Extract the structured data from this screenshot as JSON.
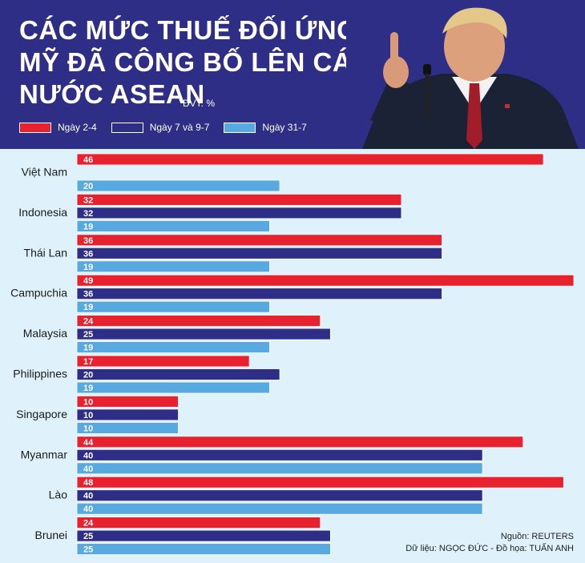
{
  "header": {
    "title_lines": [
      "CÁC MỨC THUẾ ĐỐI ỨNG",
      "MỸ ĐÃ CÔNG BỐ LÊN CÁC",
      "NƯỚC ASEAN"
    ],
    "unit": "ĐVT: %"
  },
  "colors": {
    "header_bg": "#2f2e86",
    "plot_bg": "#dff1fa",
    "series": [
      "#e8212e",
      "#2f2e86",
      "#58a9df"
    ]
  },
  "chart_data": {
    "type": "bar",
    "orientation": "horizontal",
    "title": "CÁC MỨC THUẾ ĐỐI ỨNG MỸ ĐÃ CÔNG BỐ LÊN CÁC NƯỚC ASEAN",
    "xlabel": "",
    "ylabel": "",
    "unit": "ĐVT: %",
    "xlim": [
      0,
      49
    ],
    "grid": false,
    "legend_position": "top-left",
    "categories": [
      "Việt Nam",
      "Indonesia",
      "Thái Lan",
      "Campuchia",
      "Malaysia",
      "Philippines",
      "Singapore",
      "Myanmar",
      "Lào",
      "Brunei"
    ],
    "series": [
      {
        "name": "Ngày 2-4",
        "color": "#e8212e",
        "values": [
          46,
          32,
          36,
          49,
          24,
          17,
          10,
          44,
          48,
          24
        ]
      },
      {
        "name": "Ngày 7 và 9-7",
        "color": "#2f2e86",
        "values": [
          null,
          32,
          36,
          36,
          25,
          20,
          10,
          40,
          40,
          25
        ]
      },
      {
        "name": "Ngày 31-7",
        "color": "#58a9df",
        "values": [
          20,
          19,
          19,
          19,
          19,
          19,
          10,
          40,
          40,
          25
        ]
      }
    ]
  },
  "source": {
    "line1": "Nguồn: REUTERS",
    "line2": "Dữ liệu: NGỌC ĐỨC - Đồ họa: TUẤN ANH"
  }
}
